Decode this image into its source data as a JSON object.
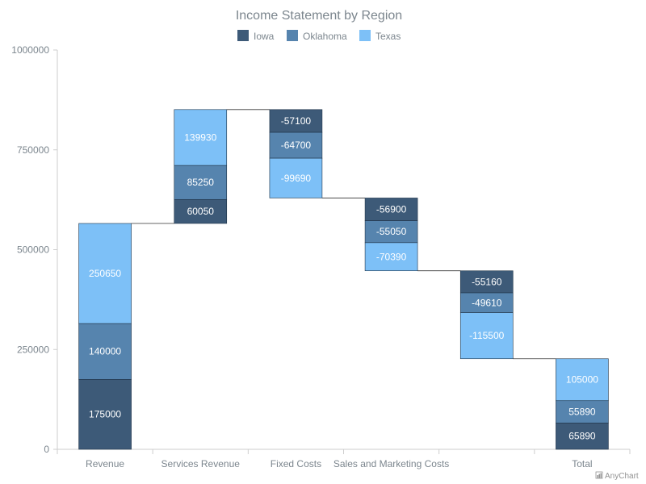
{
  "chart_data": {
    "type": "bar",
    "subtype": "stacked-waterfall",
    "title": "Income Statement by Region",
    "categories": [
      "Revenue",
      "Services Revenue",
      "Fixed Costs",
      "Sales and Marketing Costs",
      "",
      "Total"
    ],
    "series": [
      {
        "name": "Iowa",
        "color": "#3d5a78",
        "values": [
          175000,
          60050,
          -57100,
          -56900,
          -55160,
          65890
        ]
      },
      {
        "name": "Oklahoma",
        "color": "#5684ae",
        "values": [
          140000,
          85250,
          -64700,
          -55050,
          -49610,
          55890
        ]
      },
      {
        "name": "Texas",
        "color": "#7dc0f7",
        "values": [
          250650,
          139930,
          -99690,
          -70390,
          -115500,
          105000
        ]
      }
    ],
    "ylim": [
      0,
      1000000
    ],
    "yticks": [
      0,
      250000,
      500000,
      750000,
      1000000
    ],
    "grid": false,
    "legend_position": "top-center",
    "credit": "AnyChart"
  }
}
